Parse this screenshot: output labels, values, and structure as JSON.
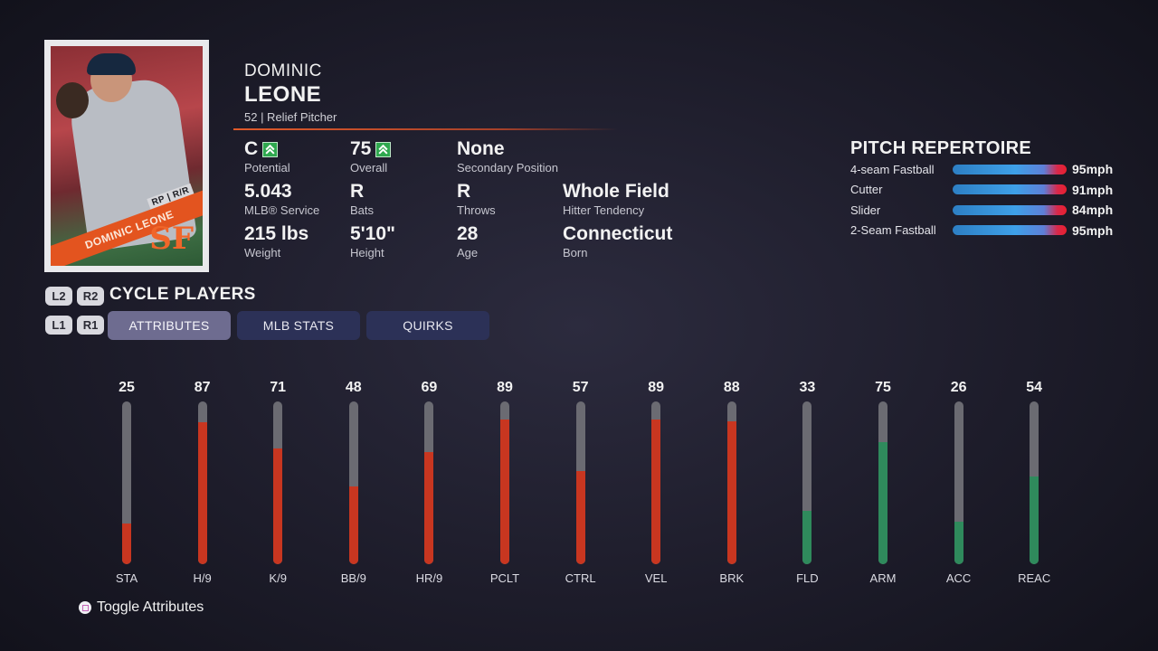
{
  "player": {
    "first_name": "DOMINIC",
    "last_name": "LEONE",
    "number_position": "52 | Relief Pitcher",
    "card": {
      "position_label": "RP | R/R",
      "banner_name": "DOMINIC LEONE",
      "team_logo": "SF"
    }
  },
  "info": [
    {
      "value": "C",
      "label": "Potential",
      "up_icon": true
    },
    {
      "value": "75",
      "label": "Overall",
      "up_icon": true
    },
    {
      "value": "None",
      "label": "Secondary Position",
      "up_icon": false
    },
    {
      "value": "5.043",
      "label": "MLB® Service",
      "up_icon": false
    },
    {
      "value": "R",
      "label": "Bats",
      "up_icon": false
    },
    {
      "value": "R",
      "label": "Throws",
      "up_icon": false
    },
    {
      "value": "Whole Field",
      "label": "Hitter Tendency",
      "up_icon": false
    },
    {
      "value": "215 lbs",
      "label": "Weight",
      "up_icon": false
    },
    {
      "value": "5'10\"",
      "label": "Height",
      "up_icon": false
    },
    {
      "value": "28",
      "label": "Age",
      "up_icon": false
    },
    {
      "value": "Connecticut",
      "label": "Born",
      "up_icon": false
    }
  ],
  "pitch_repertoire": {
    "title": "PITCH REPERTOIRE",
    "pitches": [
      {
        "name": "4-seam Fastball",
        "speed": "95mph"
      },
      {
        "name": "Cutter",
        "speed": "91mph"
      },
      {
        "name": "Slider",
        "speed": "84mph"
      },
      {
        "name": "2-Seam Fastball",
        "speed": "95mph"
      }
    ]
  },
  "cycle": {
    "buttons_top": [
      "L2",
      "R2"
    ],
    "buttons_bottom": [
      "L1",
      "R1"
    ],
    "label": "CYCLE PLAYERS"
  },
  "tabs": [
    {
      "label": "ATTRIBUTES",
      "active": true
    },
    {
      "label": "MLB STATS",
      "active": false
    },
    {
      "label": "QUIRKS",
      "active": false
    }
  ],
  "attributes": [
    {
      "name": "STA",
      "value": 25,
      "color": "red"
    },
    {
      "name": "H/9",
      "value": 87,
      "color": "red"
    },
    {
      "name": "K/9",
      "value": 71,
      "color": "red"
    },
    {
      "name": "BB/9",
      "value": 48,
      "color": "red"
    },
    {
      "name": "HR/9",
      "value": 69,
      "color": "red"
    },
    {
      "name": "PCLT",
      "value": 89,
      "color": "red"
    },
    {
      "name": "CTRL",
      "value": 57,
      "color": "red"
    },
    {
      "name": "VEL",
      "value": 89,
      "color": "red"
    },
    {
      "name": "BRK",
      "value": 88,
      "color": "red"
    },
    {
      "name": "FLD",
      "value": 33,
      "color": "green"
    },
    {
      "name": "ARM",
      "value": 75,
      "color": "green"
    },
    {
      "name": "ACC",
      "value": 26,
      "color": "green"
    },
    {
      "name": "REAC",
      "value": 54,
      "color": "green"
    }
  ],
  "footer": {
    "toggle_icon": "square-button-icon",
    "toggle_label": "Toggle Attributes"
  }
}
